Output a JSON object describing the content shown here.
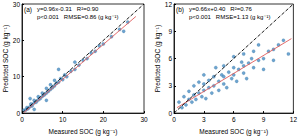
{
  "chart_data": [
    {
      "type": "scatter",
      "panel_label": "(a)",
      "annotations": [
        "y=0.96x-0.31   R²=0.90",
        "p<0.001   RMSE=0.86 (g kg⁻¹)"
      ],
      "x_label": "Measured SOC (g kg⁻¹)",
      "y_label": "Predicted SOC (g kg⁻¹)",
      "xlim": [
        0,
        30
      ],
      "ylim": [
        0,
        30
      ],
      "xticks": [
        0,
        10,
        20,
        30
      ],
      "yticks": [
        0,
        10,
        20,
        30
      ],
      "grid": false,
      "series": [
        {
          "type": "scatter",
          "marker": "circle",
          "color": "#4a8fc4",
          "x": [
            0.5,
            1,
            1.2,
            1.5,
            2,
            2.2,
            2.5,
            3,
            3,
            3.5,
            4,
            4,
            4.5,
            5,
            5,
            5.5,
            6,
            6,
            6.5,
            7,
            7,
            7.5,
            8,
            8,
            8.5,
            9,
            9.5,
            10,
            10.5,
            11,
            12,
            13,
            13,
            14,
            15,
            16,
            17,
            18,
            19,
            20,
            22,
            24,
            25,
            26,
            2,
            3,
            6,
            9
          ],
          "values": [
            0.8,
            0.9,
            1.5,
            1.2,
            1.8,
            2.5,
            2,
            2.8,
            3.5,
            3,
            3.6,
            4.5,
            4,
            4.6,
            5.5,
            5,
            5.5,
            6.8,
            6,
            6.5,
            7.8,
            7,
            7.5,
            9,
            8.2,
            8.5,
            9.5,
            9.2,
            10.5,
            10,
            11.5,
            12,
            14,
            13.2,
            14.5,
            15,
            16.5,
            17,
            18.5,
            19,
            21,
            23,
            22.5,
            25,
            4,
            1,
            3.5,
            12
          ]
        },
        {
          "type": "line",
          "line_style": "solid",
          "color": "#e05a5a",
          "x": [
            0.5,
            28
          ],
          "values": [
            0.17,
            26.57
          ]
        },
        {
          "type": "line",
          "line_style": "dashed",
          "color": "#000000",
          "x": [
            0,
            30
          ],
          "values": [
            0,
            30
          ]
        }
      ]
    },
    {
      "type": "scatter",
      "panel_label": "(b)",
      "annotations": [
        "y=0.66x+0.40   R²=0.76",
        "p<0.001   RMSE=1.13 (g kg⁻¹)"
      ],
      "x_label": "Measured SOC (g kg⁻¹)",
      "y_label": "Predicted SOC (g kg⁻¹)",
      "xlim": [
        0,
        12
      ],
      "ylim": [
        0,
        12
      ],
      "xticks": [
        0,
        3,
        6,
        9,
        12
      ],
      "yticks": [
        0,
        3,
        6,
        9,
        12
      ],
      "grid": false,
      "series": [
        {
          "type": "scatter",
          "marker": "circle",
          "color": "#4a8fc4",
          "x": [
            0.5,
            0.8,
            1,
            1.2,
            1.5,
            1.5,
            1.8,
            2,
            2,
            2.2,
            2.5,
            2.5,
            2.8,
            3,
            3,
            3,
            3.2,
            3.5,
            3.5,
            3.8,
            4,
            4,
            4.2,
            4.5,
            4.5,
            4.8,
            5,
            5,
            5,
            5.3,
            5.5,
            5.8,
            6,
            6,
            6,
            6.3,
            6.5,
            6.8,
            7,
            7,
            7,
            7.3,
            7.5,
            7.8,
            8,
            8,
            8.5,
            8.5,
            9,
            9,
            9.5,
            10,
            10,
            10.5,
            11,
            11.5
          ],
          "values": [
            1.2,
            0.6,
            1.8,
            0.9,
            1.5,
            2.4,
            1.2,
            2,
            3,
            1.5,
            2.2,
            3.4,
            1.8,
            2.5,
            3.2,
            4.2,
            1.6,
            2.8,
            3.6,
            2.2,
            3,
            4,
            5,
            2.5,
            3.5,
            4.2,
            3.2,
            4,
            5.2,
            2.8,
            4.5,
            3.8,
            4.2,
            5,
            6.2,
            3.5,
            4.8,
            5.6,
            4.4,
            5.2,
            6.5,
            3.8,
            5.5,
            6,
            5,
            6.8,
            5.8,
            7.5,
            6,
            4.8,
            6.8,
            7,
            5.8,
            7.5,
            8,
            6.5
          ]
        },
        {
          "type": "line",
          "line_style": "solid",
          "color": "#e05a5a",
          "x": [
            0.3,
            11.8
          ],
          "values": [
            0.6,
            8.19
          ]
        },
        {
          "type": "line",
          "line_style": "dashed",
          "color": "#000000",
          "x": [
            0,
            12
          ],
          "values": [
            0,
            12
          ]
        }
      ]
    }
  ]
}
